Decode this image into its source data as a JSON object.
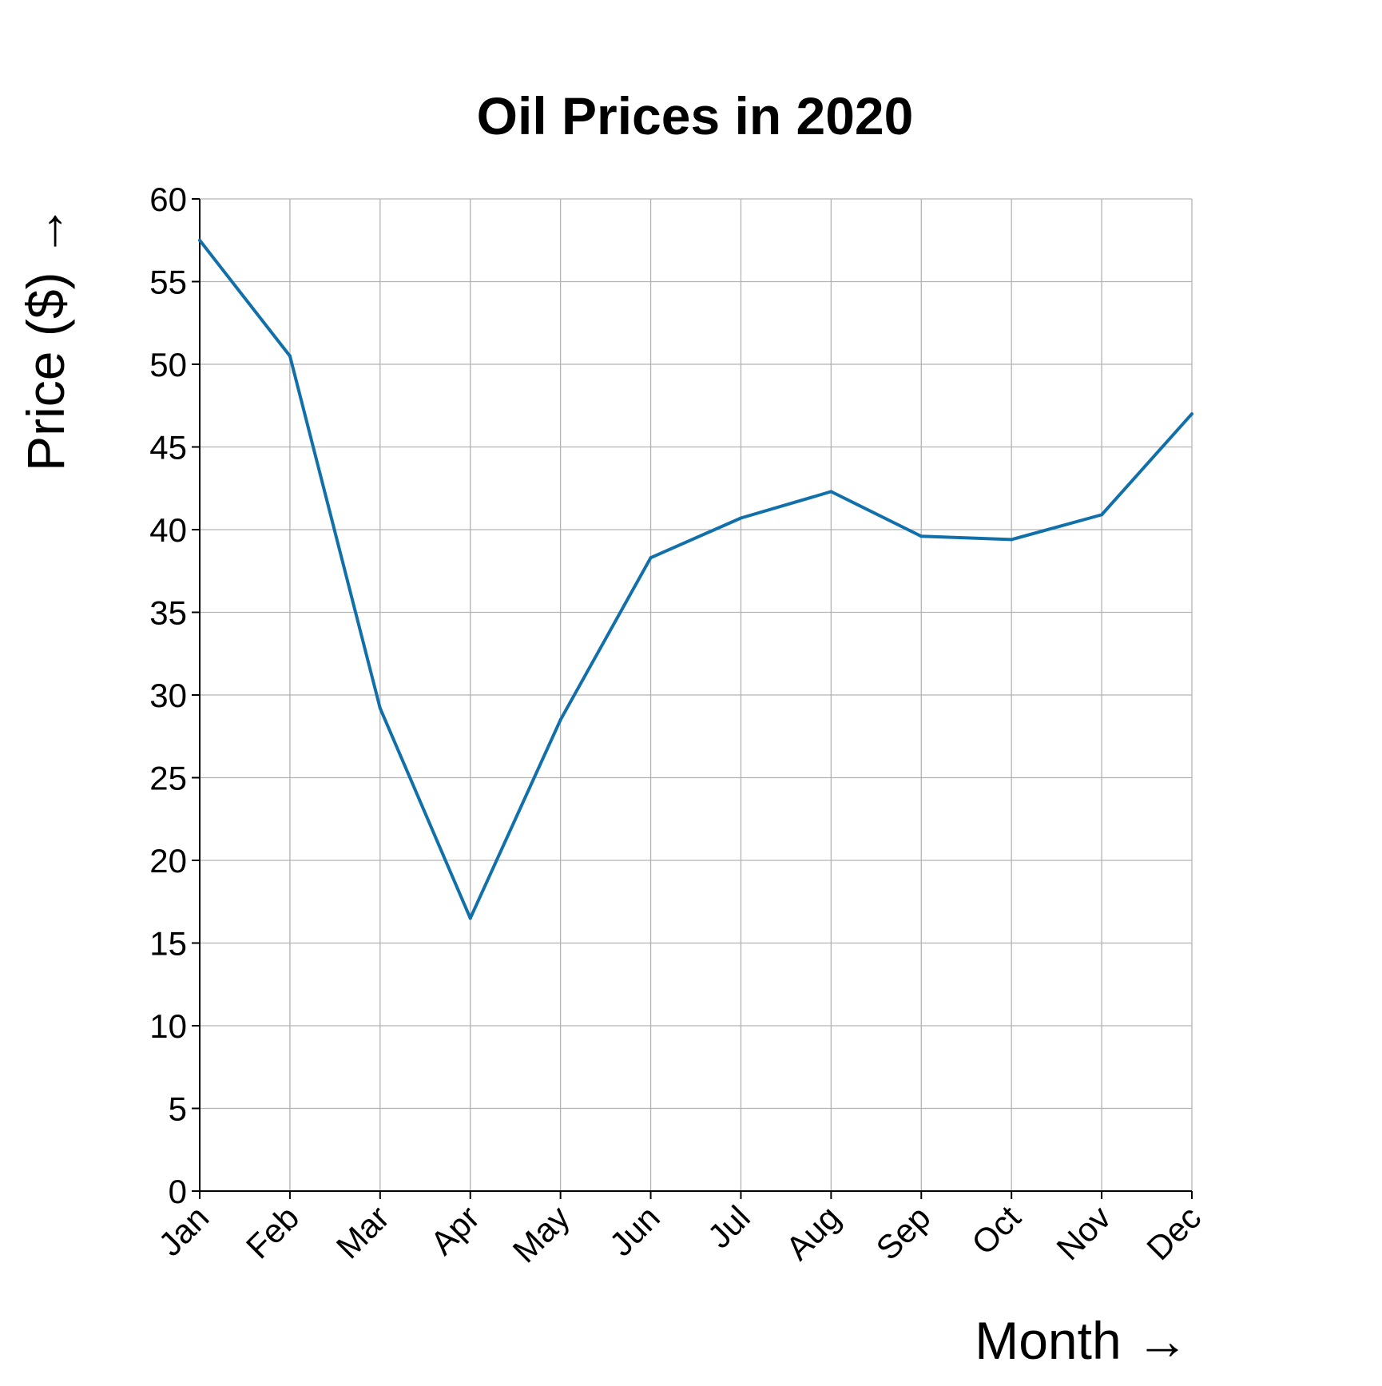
{
  "chart_data": {
    "type": "line",
    "title": "Oil Prices in 2020",
    "xlabel": "Month →",
    "ylabel": "Price ($) →",
    "categories": [
      "Jan",
      "Feb",
      "Mar",
      "Apr",
      "May",
      "Jun",
      "Jul",
      "Aug",
      "Sep",
      "Oct",
      "Nov",
      "Dec"
    ],
    "series": [
      {
        "values": [
          57.5,
          50.5,
          29.2,
          16.5,
          28.5,
          38.3,
          40.7,
          42.3,
          39.6,
          39.4,
          40.9,
          47.0
        ]
      }
    ],
    "ylim": [
      0,
      60
    ],
    "yticks": [
      0,
      5,
      10,
      15,
      20,
      25,
      30,
      35,
      40,
      45,
      50,
      55,
      60
    ],
    "grid": true,
    "legend": "none",
    "colors": {
      "line": "#1170aa",
      "grid": "#b3b3b3",
      "axis": "#000000"
    }
  }
}
